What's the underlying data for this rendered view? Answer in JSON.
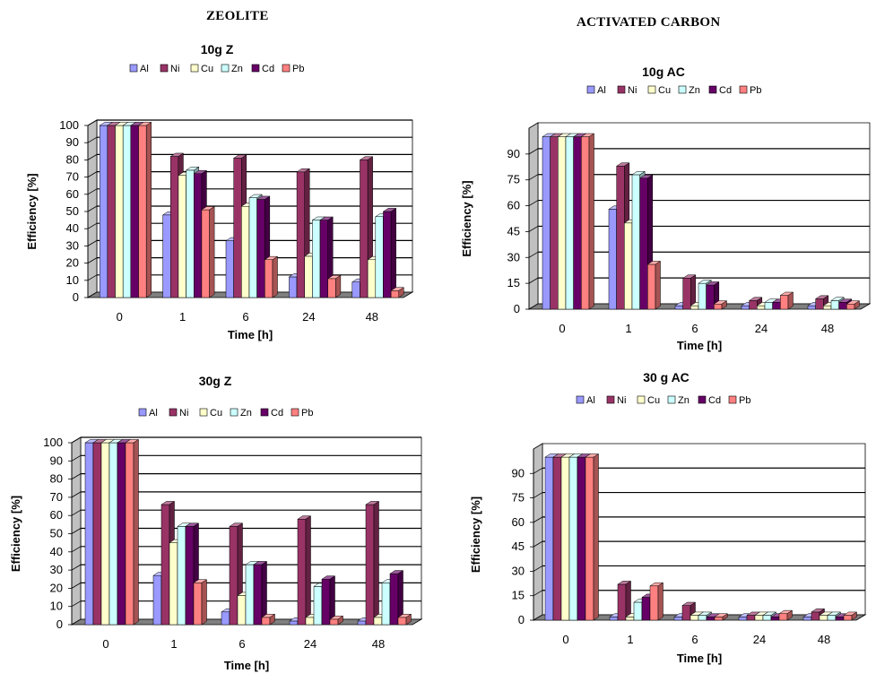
{
  "headings": {
    "left": "ZEOLITE",
    "right": "ACTIVATED CARBON"
  },
  "series_colors": {
    "Al": "#9999ff",
    "Ni": "#993366",
    "Cu": "#ffffcc",
    "Zn": "#ccffff",
    "Cd": "#660066",
    "Pb": "#ff8080"
  },
  "chart_data": [
    {
      "type": "bar",
      "title": "10g Z",
      "xlabel": "Time  [h]",
      "ylabel": "Efficiency [%]",
      "categories": [
        "0",
        "1",
        "6",
        "24",
        "48"
      ],
      "ylim": [
        0,
        100
      ],
      "yticks": [
        0,
        10,
        20,
        30,
        40,
        50,
        60,
        70,
        80,
        90,
        100
      ],
      "grid": true,
      "legend": "top",
      "series": [
        {
          "name": "Al",
          "values": [
            100,
            48,
            33,
            12,
            9
          ]
        },
        {
          "name": "Ni",
          "values": [
            100,
            82,
            81,
            73,
            80
          ]
        },
        {
          "name": "Cu",
          "values": [
            100,
            71,
            53,
            24,
            22
          ]
        },
        {
          "name": "Zn",
          "values": [
            100,
            74,
            58,
            45,
            47
          ]
        },
        {
          "name": "Cd",
          "values": [
            100,
            72,
            57,
            45,
            50
          ]
        },
        {
          "name": "Pb",
          "values": [
            100,
            51,
            22,
            11,
            4
          ]
        }
      ]
    },
    {
      "type": "bar",
      "title": "10g AC",
      "xlabel": "Time [h]",
      "ylabel": "Efficiency [%]",
      "categories": [
        "0",
        "1",
        "6",
        "24",
        "48"
      ],
      "ylim": [
        0,
        105
      ],
      "yticks": [
        0,
        15,
        30,
        45,
        60,
        75,
        90
      ],
      "grid": true,
      "legend": "top",
      "series": [
        {
          "name": "Al",
          "values": [
            100,
            58,
            2,
            2,
            2
          ]
        },
        {
          "name": "Ni",
          "values": [
            100,
            83,
            18,
            5,
            6
          ]
        },
        {
          "name": "Cu",
          "values": [
            100,
            50,
            2,
            2,
            2
          ]
        },
        {
          "name": "Zn",
          "values": [
            100,
            78,
            15,
            4,
            5
          ]
        },
        {
          "name": "Cd",
          "values": [
            100,
            76,
            14,
            4,
            4
          ]
        },
        {
          "name": "Pb",
          "values": [
            100,
            26,
            3,
            8,
            3
          ]
        }
      ]
    },
    {
      "type": "bar",
      "title": "30g Z",
      "xlabel": "Time [h]",
      "ylabel": "Efficiency [%]",
      "categories": [
        "0",
        "1",
        "6",
        "24",
        "48"
      ],
      "ylim": [
        0,
        100
      ],
      "yticks": [
        0,
        10,
        20,
        30,
        40,
        50,
        60,
        70,
        80,
        90,
        100
      ],
      "grid": true,
      "legend": "top",
      "series": [
        {
          "name": "Al",
          "values": [
            100,
            27,
            7,
            2,
            2
          ]
        },
        {
          "name": "Ni",
          "values": [
            100,
            66,
            54,
            58,
            66
          ]
        },
        {
          "name": "Cu",
          "values": [
            100,
            45,
            16,
            4,
            4
          ]
        },
        {
          "name": "Zn",
          "values": [
            100,
            54,
            33,
            21,
            23
          ]
        },
        {
          "name": "Cd",
          "values": [
            100,
            54,
            33,
            25,
            28
          ]
        },
        {
          "name": "Pb",
          "values": [
            100,
            23,
            4,
            3,
            4
          ]
        }
      ]
    },
    {
      "type": "bar",
      "title": "30 g  AC",
      "xlabel": "Time [h]",
      "ylabel": "Efficiency [%]",
      "categories": [
        "0",
        "1",
        "6",
        "24",
        "48"
      ],
      "ylim": [
        0,
        105
      ],
      "yticks": [
        0,
        15,
        30,
        45,
        60,
        75,
        90
      ],
      "grid": true,
      "legend": "top",
      "series": [
        {
          "name": "Al",
          "values": [
            100,
            2,
            2,
            2,
            2
          ]
        },
        {
          "name": "Ni",
          "values": [
            100,
            22,
            9,
            3,
            5
          ]
        },
        {
          "name": "Cu",
          "values": [
            100,
            2,
            3,
            3,
            3
          ]
        },
        {
          "name": "Zn",
          "values": [
            100,
            11,
            3,
            3,
            3
          ]
        },
        {
          "name": "Cd",
          "values": [
            100,
            14,
            2,
            2,
            2
          ]
        },
        {
          "name": "Pb",
          "values": [
            100,
            21,
            2,
            4,
            3
          ]
        }
      ]
    }
  ]
}
